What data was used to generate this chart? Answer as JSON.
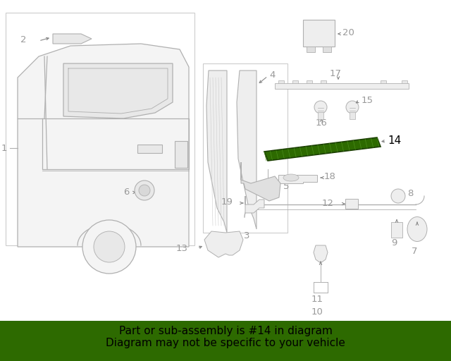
{
  "bg_color": "#ffffff",
  "line_color": "#b0b0b0",
  "dark_line": "#888888",
  "label_color": "#999999",
  "black": "#000000",
  "part14_fill": "#2d6a00",
  "part14_edge": "#1a3d00",
  "footer_bg": "#2d6a00",
  "footer_text": "Part or sub-assembly is #14 in diagram\nDiagram may not be specific to your vehicle",
  "footer_fontsize": 11,
  "label_fontsize": 9.5,
  "label14_fontsize": 11
}
